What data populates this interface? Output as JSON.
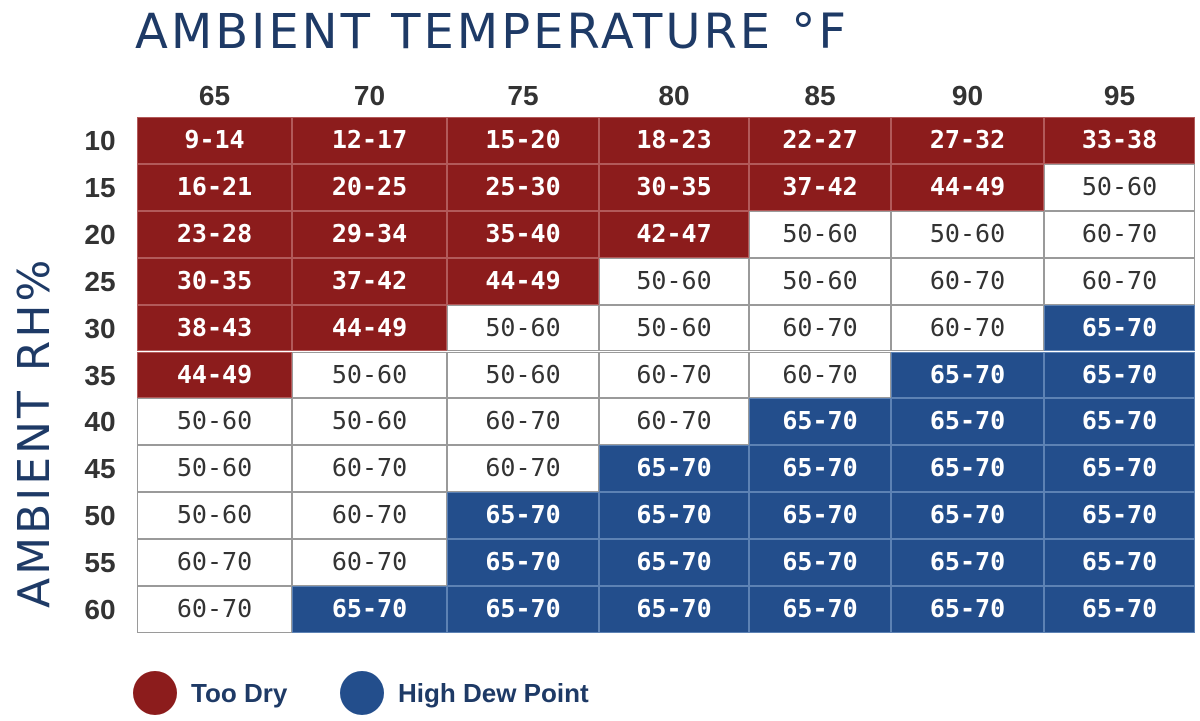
{
  "chart_data": {
    "type": "table",
    "title": "AMBIENT TEMPERATURE °F",
    "ylabel": "AMBIENT RH%",
    "columns": [
      "65",
      "70",
      "75",
      "80",
      "85",
      "90",
      "95"
    ],
    "rows": [
      "10",
      "15",
      "20",
      "25",
      "30",
      "35",
      "40",
      "45",
      "50",
      "55",
      "60"
    ],
    "cells": [
      [
        "9-14",
        "12-17",
        "15-20",
        "18-23",
        "22-27",
        "27-32",
        "33-38"
      ],
      [
        "16-21",
        "20-25",
        "25-30",
        "30-35",
        "37-42",
        "44-49",
        "50-60"
      ],
      [
        "23-28",
        "29-34",
        "35-40",
        "42-47",
        "50-60",
        "50-60",
        "60-70"
      ],
      [
        "30-35",
        "37-42",
        "44-49",
        "50-60",
        "50-60",
        "60-70",
        "60-70"
      ],
      [
        "38-43",
        "44-49",
        "50-60",
        "50-60",
        "60-70",
        "60-70",
        "65-70"
      ],
      [
        "44-49",
        "50-60",
        "50-60",
        "60-70",
        "60-70",
        "65-70",
        "65-70"
      ],
      [
        "50-60",
        "50-60",
        "60-70",
        "60-70",
        "65-70",
        "65-70",
        "65-70"
      ],
      [
        "50-60",
        "60-70",
        "60-70",
        "65-70",
        "65-70",
        "65-70",
        "65-70"
      ],
      [
        "50-60",
        "60-70",
        "65-70",
        "65-70",
        "65-70",
        "65-70",
        "65-70"
      ],
      [
        "60-70",
        "60-70",
        "65-70",
        "65-70",
        "65-70",
        "65-70",
        "65-70"
      ],
      [
        "60-70",
        "65-70",
        "65-70",
        "65-70",
        "65-70",
        "65-70",
        "65-70"
      ]
    ],
    "categories": [
      [
        "dry",
        "dry",
        "dry",
        "dry",
        "dry",
        "dry",
        "dry"
      ],
      [
        "dry",
        "dry",
        "dry",
        "dry",
        "dry",
        "dry",
        "ok"
      ],
      [
        "dry",
        "dry",
        "dry",
        "dry",
        "ok",
        "ok",
        "ok"
      ],
      [
        "dry",
        "dry",
        "dry",
        "ok",
        "ok",
        "ok",
        "ok"
      ],
      [
        "dry",
        "dry",
        "ok",
        "ok",
        "ok",
        "ok",
        "dew"
      ],
      [
        "dry",
        "ok",
        "ok",
        "ok",
        "ok",
        "dew",
        "dew"
      ],
      [
        "ok",
        "ok",
        "ok",
        "ok",
        "dew",
        "dew",
        "dew"
      ],
      [
        "ok",
        "ok",
        "ok",
        "dew",
        "dew",
        "dew",
        "dew"
      ],
      [
        "ok",
        "ok",
        "dew",
        "dew",
        "dew",
        "dew",
        "dew"
      ],
      [
        "ok",
        "ok",
        "dew",
        "dew",
        "dew",
        "dew",
        "dew"
      ],
      [
        "ok",
        "dew",
        "dew",
        "dew",
        "dew",
        "dew",
        "dew"
      ]
    ],
    "legend": [
      {
        "key": "dry",
        "label": "Too Dry",
        "color": "#8c1c1c"
      },
      {
        "key": "dew",
        "label": "High Dew Point",
        "color": "#234e8c"
      }
    ],
    "legend_placement": "bottom-left"
  }
}
